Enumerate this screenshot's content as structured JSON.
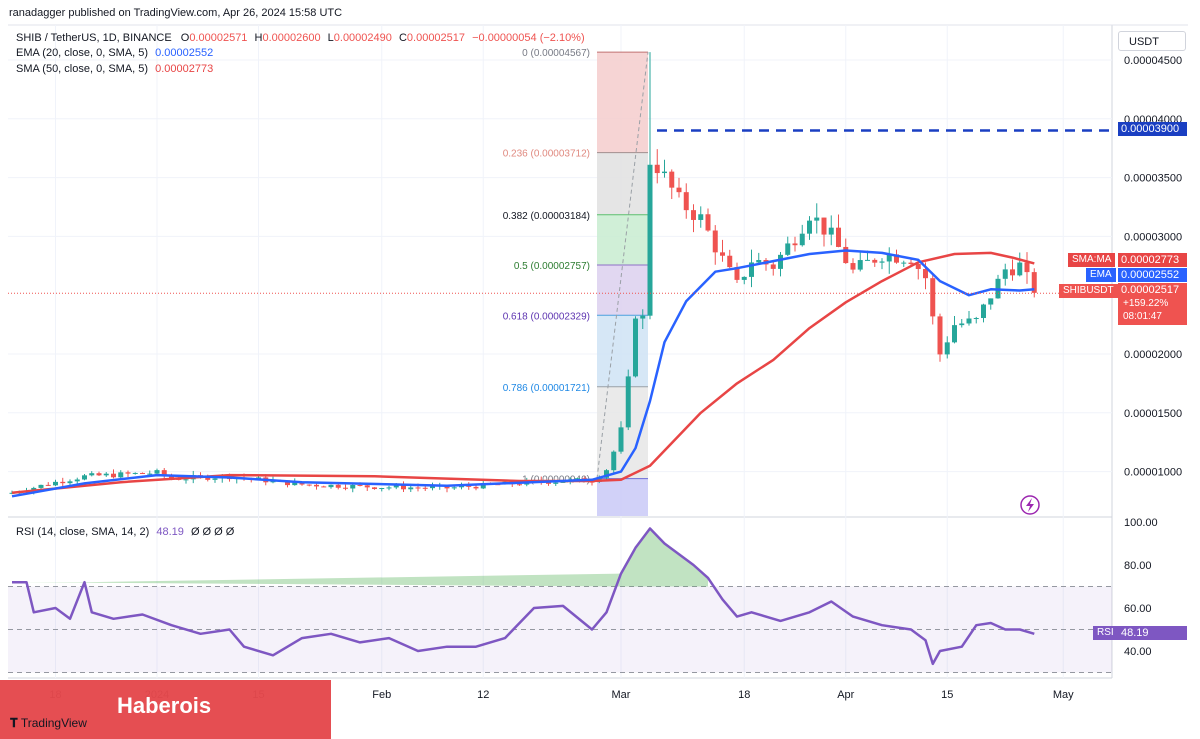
{
  "credit": "ranadagger published on TradingView.com, Apr 26, 2024 15:58 UTC",
  "legend": {
    "symbol": "SHIB / TetherUS, 1D, BINANCE",
    "o_label": "O",
    "o_value": "0.00002571",
    "h_label": "H",
    "h_value": "0.00002600",
    "l_label": "L",
    "l_value": "0.00002490",
    "c_label": "C",
    "c_value": "0.00002517",
    "change": "−0.00000054 (−2.10%)",
    "ema_label": "EMA (20, close, 0, SMA, 5)",
    "ema_value": "0.00002552",
    "sma_label": "SMA (50, close, 0, SMA, 5)",
    "sma_value": "0.00002773"
  },
  "currency_button": "USDT",
  "tags": {
    "resistance": "0.00003900",
    "sma_name": "SMA:MA",
    "sma_value": "0.00002773",
    "ema_name": "EMA",
    "ema_value": "0.00002552",
    "symbol_name": "SHIBUSDT",
    "last_price": "0.00002517",
    "last_change": "+159.22%",
    "countdown": "08:01:47",
    "rsi_name": "RSI",
    "rsi_value": "48.19"
  },
  "rsi_legend": {
    "label": "RSI (14, close, SMA, 14, 2)",
    "value": "48.19",
    "extras": "Ø Ø Ø Ø"
  },
  "watermark": {
    "brand": "Haberois",
    "logo_text": "TradingView"
  },
  "colors": {
    "up": "#26a69a",
    "down": "#ef5350",
    "ema": "#2962ff",
    "sma": "#e84545",
    "rsi": "#7e57c2",
    "resistance": "#1a3fc2"
  },
  "icons": {
    "lightning": "lightning-icon",
    "tv_logo": "tradingview-logo-icon"
  },
  "chart_data": [
    {
      "type": "candlestick",
      "title": "SHIB / TetherUS, 1D, BINANCE",
      "y_axis_ticks": [
        "0.00004500",
        "0.00004000",
        "0.00003500",
        "0.00003000",
        "0.00002000",
        "0.00001500",
        "0.00001000"
      ],
      "y_ticks_numeric": [
        4.5e-05,
        4e-05,
        3.5e-05,
        3e-05,
        2e-05,
        1.5e-05,
        1e-05
      ],
      "ylim": [
        6.2e-06,
        4.6e-05
      ],
      "x_axis_ticks": [
        "18",
        "2024",
        "15",
        "Feb",
        "12",
        "Mar",
        "18",
        "Apr",
        "15",
        "May"
      ],
      "x_tick_days": [
        6,
        20,
        34,
        51,
        65,
        84,
        101,
        115,
        129,
        145
      ],
      "ohlc_keypoints_close": [
        [
          0,
          8.2e-06
        ],
        [
          6,
          9.1e-06
        ],
        [
          10,
          9.6e-06
        ],
        [
          20,
          9.9e-06
        ],
        [
          22,
          9.4e-06
        ],
        [
          30,
          9.6e-06
        ],
        [
          40,
          8.9e-06
        ],
        [
          50,
          8.7e-06
        ],
        [
          60,
          8.6e-06
        ],
        [
          72,
          9.1e-06
        ],
        [
          80,
          9.3e-06
        ],
        [
          81,
          9.7e-06
        ],
        [
          82,
          1.02e-05
        ],
        [
          83,
          1.17e-05
        ],
        [
          84,
          1.35e-05
        ],
        [
          85,
          1.77e-05
        ],
        [
          86,
          2.35e-05
        ],
        [
          87,
          2.3e-05
        ],
        [
          88,
          3.65e-05
        ],
        [
          89,
          3.6e-05
        ],
        [
          92,
          3.3e-05
        ],
        [
          95,
          3.15e-05
        ],
        [
          98,
          2.8e-05
        ],
        [
          100,
          2.58e-05
        ],
        [
          102,
          2.8e-05
        ],
        [
          105,
          2.75e-05
        ],
        [
          108,
          3e-05
        ],
        [
          110,
          3.2e-05
        ],
        [
          113,
          3e-05
        ],
        [
          116,
          2.7e-05
        ],
        [
          120,
          2.85e-05
        ],
        [
          124,
          2.82e-05
        ],
        [
          126,
          2.65e-05
        ],
        [
          127,
          2.3e-05
        ],
        [
          128,
          2e-05
        ],
        [
          130,
          2.25e-05
        ],
        [
          133,
          2.28e-05
        ],
        [
          135,
          2.5e-05
        ],
        [
          137,
          2.72e-05
        ],
        [
          139,
          2.75e-05
        ],
        [
          141,
          2.52e-05
        ]
      ],
      "resistance_line": 3.9e-05,
      "fibonacci": {
        "levels": [
          {
            "ratio": "0",
            "price": 4.567e-05,
            "label": "0 (0.00004567)"
          },
          {
            "ratio": "0.236",
            "price": 3.712e-05,
            "label": "0.236 (0.00003712)"
          },
          {
            "ratio": "0.382",
            "price": 3.184e-05,
            "label": "0.382 (0.00003184)"
          },
          {
            "ratio": "0.5",
            "price": 2.757e-05,
            "label": "0.5 (0.00002757)"
          },
          {
            "ratio": "0.618",
            "price": 2.329e-05,
            "label": "0.618 (0.00002329)"
          },
          {
            "ratio": "0.786",
            "price": 1.721e-05,
            "label": "0.786 (0.00001721)"
          },
          {
            "ratio": "1",
            "price": 9.4e-06,
            "label": "1 (0.00000940)"
          }
        ]
      },
      "ema_20": [
        [
          0,
          7.9e-06
        ],
        [
          10,
          9e-06
        ],
        [
          20,
          9.7e-06
        ],
        [
          30,
          9.5e-06
        ],
        [
          40,
          9.1e-06
        ],
        [
          60,
          8.8e-06
        ],
        [
          80,
          9.3e-06
        ],
        [
          84,
          1e-05
        ],
        [
          86,
          1.2e-05
        ],
        [
          88,
          1.6e-05
        ],
        [
          90,
          2.1e-05
        ],
        [
          93,
          2.45e-05
        ],
        [
          97,
          2.7e-05
        ],
        [
          100,
          2.73e-05
        ],
        [
          110,
          2.85e-05
        ],
        [
          115,
          2.88e-05
        ],
        [
          120,
          2.86e-05
        ],
        [
          125,
          2.8e-05
        ],
        [
          128,
          2.62e-05
        ],
        [
          132,
          2.5e-05
        ],
        [
          135,
          2.55e-05
        ],
        [
          139,
          2.54e-05
        ],
        [
          141,
          2.55e-05
        ]
      ],
      "sma_50": [
        [
          0,
          8.2e-06
        ],
        [
          15,
          9.1e-06
        ],
        [
          30,
          9.7e-06
        ],
        [
          50,
          9.6e-06
        ],
        [
          70,
          9.2e-06
        ],
        [
          80,
          9.2e-06
        ],
        [
          84,
          9.3e-06
        ],
        [
          88,
          1.05e-05
        ],
        [
          95,
          1.5e-05
        ],
        [
          100,
          1.75e-05
        ],
        [
          105,
          1.95e-05
        ],
        [
          110,
          2.22e-05
        ],
        [
          115,
          2.44e-05
        ],
        [
          120,
          2.62e-05
        ],
        [
          125,
          2.78e-05
        ],
        [
          130,
          2.85e-05
        ],
        [
          135,
          2.86e-05
        ],
        [
          138,
          2.82e-05
        ],
        [
          141,
          2.77e-05
        ]
      ]
    },
    {
      "type": "line",
      "title": "RSI (14, close, SMA, 14, 2)",
      "y_axis_ticks": [
        "100.00",
        "80.00",
        "60.00",
        "40.00"
      ],
      "ylim": [
        30,
        100
      ],
      "bands": [
        30,
        50,
        70
      ],
      "rsi": [
        [
          0,
          72
        ],
        [
          2,
          72
        ],
        [
          3,
          58
        ],
        [
          6,
          60
        ],
        [
          8,
          55
        ],
        [
          10,
          72
        ],
        [
          11,
          58
        ],
        [
          14,
          55
        ],
        [
          18,
          57
        ],
        [
          22,
          52
        ],
        [
          26,
          48
        ],
        [
          30,
          50
        ],
        [
          32,
          42
        ],
        [
          36,
          38
        ],
        [
          40,
          46
        ],
        [
          44,
          48
        ],
        [
          48,
          44
        ],
        [
          52,
          46
        ],
        [
          56,
          40
        ],
        [
          60,
          42
        ],
        [
          64,
          42
        ],
        [
          68,
          46
        ],
        [
          72,
          60
        ],
        [
          76,
          61
        ],
        [
          80,
          50
        ],
        [
          82,
          58
        ],
        [
          84,
          76
        ],
        [
          86,
          88
        ],
        [
          88,
          97
        ],
        [
          90,
          90
        ],
        [
          92,
          85
        ],
        [
          94,
          80
        ],
        [
          96,
          74
        ],
        [
          98,
          64
        ],
        [
          100,
          56
        ],
        [
          102,
          58
        ],
        [
          106,
          54
        ],
        [
          110,
          58
        ],
        [
          113,
          63
        ],
        [
          116,
          56
        ],
        [
          120,
          52
        ],
        [
          124,
          50
        ],
        [
          126,
          45
        ],
        [
          127,
          34
        ],
        [
          128,
          40
        ],
        [
          131,
          42
        ],
        [
          133,
          52
        ],
        [
          135,
          53
        ],
        [
          137,
          50
        ],
        [
          139,
          50
        ],
        [
          141,
          48
        ]
      ]
    }
  ]
}
